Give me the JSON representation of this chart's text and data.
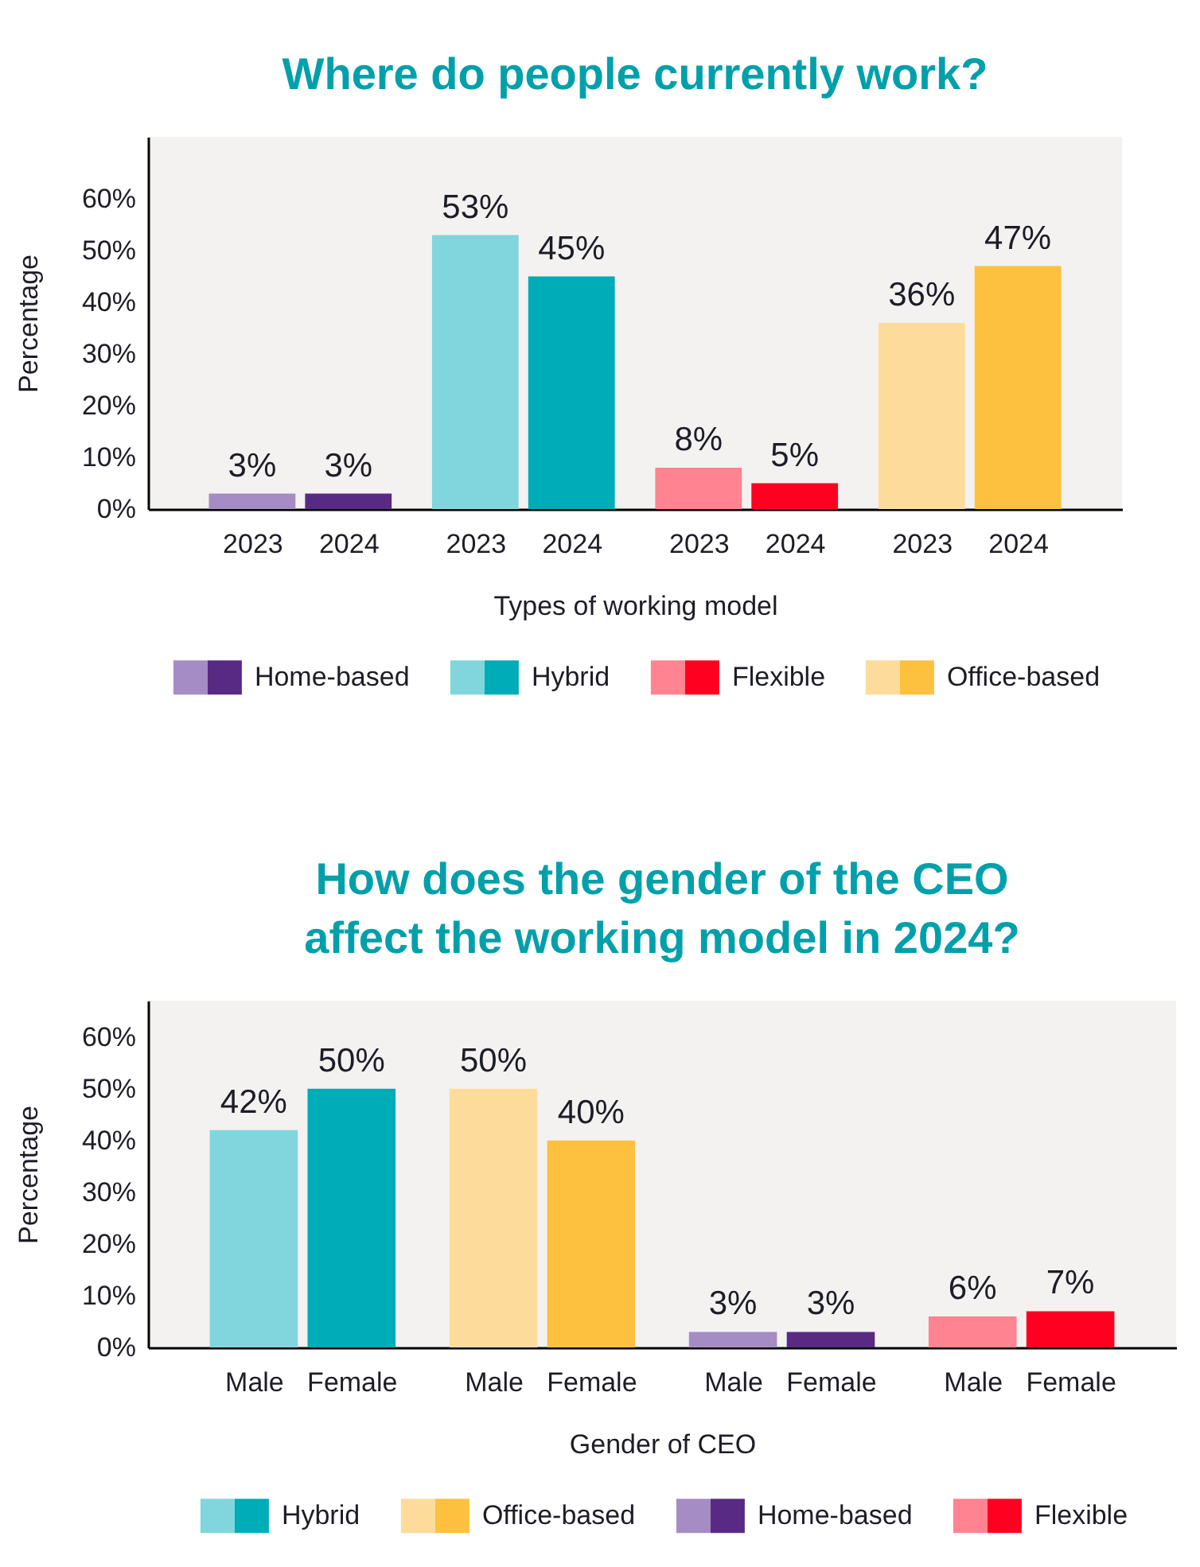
{
  "chart_data": [
    {
      "type": "bar",
      "title": "Where do people currently work?",
      "xlabel": "Types of working model",
      "ylabel": "Percentage",
      "categories": [
        "2023",
        "2024",
        "2023",
        "2024",
        "2023",
        "2024",
        "2023",
        "2024"
      ],
      "series": [
        {
          "name": "Home-based",
          "colors": [
            "#a68cc4",
            "#582a84",
            null,
            null,
            null,
            null,
            null,
            null
          ],
          "values": [
            3,
            3,
            null,
            null,
            null,
            null,
            null,
            null
          ],
          "value_labels": [
            "3%",
            "3%",
            null,
            null,
            null,
            null,
            null,
            null
          ]
        },
        {
          "name": "Hybrid",
          "colors": [
            null,
            null,
            "#80d6dc",
            "#00acb8",
            null,
            null,
            null,
            null
          ],
          "values": [
            null,
            null,
            53,
            45,
            null,
            null,
            null,
            null
          ],
          "value_labels": [
            null,
            null,
            "53%",
            "45%",
            null,
            null,
            null,
            null
          ]
        },
        {
          "name": "Flexible",
          "colors": [
            null,
            null,
            null,
            null,
            "#ff8391",
            "#ff0020",
            null,
            null
          ],
          "values": [
            null,
            null,
            null,
            null,
            8,
            5,
            null,
            null
          ],
          "value_labels": [
            null,
            null,
            null,
            null,
            "8%",
            "5%",
            null,
            null
          ]
        },
        {
          "name": "Office-based",
          "colors": [
            null,
            null,
            null,
            null,
            null,
            null,
            "#fddc9b",
            "#fdc13f"
          ],
          "values": [
            null,
            null,
            null,
            null,
            null,
            null,
            36,
            47
          ],
          "value_labels": [
            null,
            null,
            null,
            null,
            null,
            null,
            "36%",
            "47%"
          ]
        }
      ],
      "ylim": [
        0,
        72
      ],
      "yticks": [
        {
          "value": 0,
          "label": "0%"
        },
        {
          "value": 10,
          "label": "10%"
        },
        {
          "value": 20,
          "label": "20%"
        },
        {
          "value": 30,
          "label": "30%"
        },
        {
          "value": 40,
          "label": "40%"
        },
        {
          "value": 50,
          "label": "50%"
        },
        {
          "value": 60,
          "label": "60%"
        }
      ],
      "legend": "bottom"
    },
    {
      "type": "bar",
      "title": "How does the gender of the CEO affect the working model in 2024?",
      "xlabel": "Gender of CEO",
      "ylabel": "Percentage",
      "categories": [
        "Male",
        "Female",
        "Male",
        "Female",
        "Male",
        "Female",
        "Male",
        "Female"
      ],
      "series": [
        {
          "name": "Hybrid",
          "colors": [
            "#80d6dc",
            "#00acb8",
            null,
            null,
            null,
            null,
            null,
            null
          ],
          "values": [
            42,
            50,
            null,
            null,
            null,
            null,
            null,
            null
          ],
          "value_labels": [
            "42%",
            "50%",
            null,
            null,
            null,
            null,
            null,
            null
          ]
        },
        {
          "name": "Office-based",
          "colors": [
            null,
            null,
            "#fddc9b",
            "#fdc13f",
            null,
            null,
            null,
            null
          ],
          "values": [
            null,
            null,
            50,
            40,
            null,
            null,
            null,
            null
          ],
          "value_labels": [
            null,
            null,
            "50%",
            "40%",
            null,
            null,
            null,
            null
          ]
        },
        {
          "name": "Home-based",
          "colors": [
            null,
            null,
            null,
            null,
            "#a68cc4",
            "#582a84",
            null,
            null
          ],
          "values": [
            null,
            null,
            null,
            null,
            3,
            3,
            null,
            null
          ],
          "value_labels": [
            null,
            null,
            null,
            null,
            "3%",
            "3%",
            null,
            null
          ]
        },
        {
          "name": "Flexible",
          "colors": [
            null,
            null,
            null,
            null,
            null,
            null,
            "#ff8391",
            "#ff0020"
          ],
          "values": [
            null,
            null,
            null,
            null,
            null,
            null,
            6,
            7
          ],
          "value_labels": [
            null,
            null,
            null,
            null,
            null,
            null,
            "6%",
            "7%"
          ]
        }
      ],
      "ylim": [
        0,
        67
      ],
      "yticks": [
        {
          "value": 0,
          "label": "0%"
        },
        {
          "value": 10,
          "label": "10%"
        },
        {
          "value": 20,
          "label": "20%"
        },
        {
          "value": 30,
          "label": "30%"
        },
        {
          "value": 40,
          "label": "40%"
        },
        {
          "value": 50,
          "label": "50%"
        },
        {
          "value": 60,
          "label": "60%"
        }
      ],
      "legend": "bottom"
    }
  ]
}
